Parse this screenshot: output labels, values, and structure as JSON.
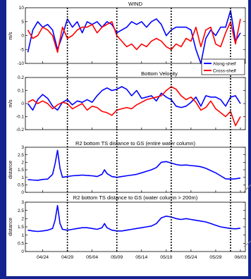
{
  "theme": {
    "background": "#14238f",
    "figure_background": "#ffffff",
    "series_blue": "#0000ff",
    "series_red": "#ff0000",
    "event_line": "#000000"
  },
  "x_axis": {
    "ticks": [
      "04/24",
      "04/29",
      "05/04",
      "05/09",
      "05/14",
      "05/19",
      "05/24",
      "05/29",
      "06/03"
    ],
    "event_lines_at": [
      "04/29",
      "05/09",
      "05/20",
      "06/01"
    ]
  },
  "chart_data": [
    {
      "type": "line",
      "title": "WIND",
      "ylabel": "m/s",
      "ylim": [
        -10,
        10
      ],
      "yticks": [
        "10",
        "5",
        "0",
        "-5",
        "-10"
      ],
      "legend": {
        "placement": "bottom-right",
        "entries": [
          "Along-shelf",
          "Cross-shelf"
        ]
      },
      "x": [
        21,
        22,
        23,
        24,
        25,
        26,
        27,
        28,
        29,
        30,
        31,
        32,
        33,
        34,
        35,
        36,
        37,
        38,
        39,
        40,
        41,
        42,
        43,
        44,
        45,
        46,
        47,
        48,
        49,
        50,
        51,
        52,
        53,
        54,
        55,
        56,
        57,
        58,
        59,
        60,
        61,
        62,
        63,
        64
      ],
      "series": [
        {
          "name": "Along-shelf",
          "values": [
            -6,
            2,
            5,
            3,
            4,
            2,
            -5,
            0,
            6,
            3,
            5,
            1,
            5,
            4,
            5,
            3,
            5,
            4,
            1,
            2,
            3,
            5,
            4,
            5,
            3,
            5,
            6,
            4,
            0,
            2,
            3,
            3,
            3,
            2,
            -5,
            -10,
            -1,
            2,
            0,
            3,
            3,
            9,
            -2,
            1
          ]
        },
        {
          "name": "Cross-shelf",
          "values": [
            2,
            -1,
            0,
            3,
            2,
            0,
            -6,
            3,
            -1,
            0,
            2,
            3,
            3,
            4,
            1,
            3,
            4,
            5,
            0,
            -2,
            -4,
            -3,
            -5,
            -3,
            -4,
            -2,
            -1,
            -2,
            -4,
            -5,
            -3,
            -4,
            -1,
            -2,
            3,
            -4,
            2,
            3,
            -3,
            -4,
            1,
            5,
            -3,
            6
          ]
        }
      ]
    },
    {
      "type": "line",
      "title": "Bottom Velocity",
      "ylabel": "m/s",
      "ylim": [
        -0.2,
        0.2
      ],
      "yticks": [
        "0.2",
        "0.1",
        "0",
        "-0.1",
        "-0.2"
      ],
      "x": [
        21,
        22,
        23,
        24,
        25,
        26,
        27,
        28,
        29,
        30,
        31,
        32,
        33,
        34,
        35,
        36,
        37,
        38,
        39,
        40,
        41,
        42,
        43,
        44,
        45,
        46,
        47,
        48,
        49,
        50,
        51,
        52,
        53,
        54,
        55,
        56,
        57,
        58,
        59,
        60,
        61,
        62,
        63,
        64
      ],
      "series": [
        {
          "name": "Along-shelf",
          "values": [
            0.0,
            -0.05,
            0.03,
            0.07,
            0.04,
            -0.02,
            -0.05,
            0.01,
            0.03,
            -0.01,
            0.02,
            0.01,
            0.03,
            0.01,
            0.06,
            0.1,
            0.12,
            0.1,
            0.11,
            0.13,
            0.11,
            0.06,
            0.1,
            0.04,
            0.05,
            0.06,
            0.02,
            0.08,
            0.05,
            0.03,
            -0.02,
            -0.03,
            -0.02,
            0.01,
            0.05,
            -0.02,
            0.06,
            0.05,
            0.05,
            0.03,
            -0.02,
            0.05,
            0.06,
            0.0
          ]
        },
        {
          "name": "Cross-shelf",
          "values": [
            0.01,
            0.03,
            0.0,
            0.02,
            0.0,
            -0.04,
            -0.01,
            0.01,
            0.0,
            -0.04,
            -0.02,
            0.0,
            -0.05,
            -0.02,
            -0.03,
            -0.06,
            -0.07,
            -0.09,
            -0.05,
            -0.04,
            -0.03,
            -0.04,
            -0.01,
            0.01,
            0.03,
            0.04,
            0.05,
            0.06,
            0.1,
            0.13,
            0.11,
            0.06,
            0.03,
            0.05,
            0.01,
            -0.05,
            -0.03,
            0.02,
            -0.04,
            -0.07,
            -0.1,
            -0.06,
            -0.17,
            -0.1
          ]
        }
      ]
    },
    {
      "type": "line",
      "title": "R2 bottom TS distance to GS (entire water column)",
      "ylabel": "distance",
      "ylim": [
        0,
        3
      ],
      "yticks": [
        "3",
        "2.5",
        "2",
        "1.5",
        "1",
        "0.5",
        "0"
      ],
      "x": [
        21,
        22,
        23,
        24,
        25,
        26,
        26.5,
        27,
        27.5,
        28,
        29,
        30,
        31,
        32,
        33,
        34,
        35,
        36,
        36.5,
        37,
        38,
        39,
        40,
        41,
        42,
        43,
        44,
        45,
        46,
        47,
        48,
        49,
        50,
        51,
        52,
        53,
        54,
        55,
        56,
        57,
        58,
        59,
        60,
        61,
        62,
        63,
        64
      ],
      "series": [
        {
          "name": "",
          "values": [
            0.85,
            0.82,
            0.8,
            0.86,
            0.88,
            1.2,
            1.9,
            2.8,
            1.6,
            1.0,
            1.05,
            1.1,
            1.12,
            1.15,
            1.12,
            1.1,
            1.05,
            1.2,
            1.5,
            1.25,
            1.05,
            1.0,
            1.05,
            1.1,
            1.15,
            1.2,
            1.3,
            1.4,
            1.5,
            1.65,
            2.0,
            2.05,
            1.95,
            1.85,
            1.8,
            1.82,
            1.78,
            1.75,
            1.7,
            1.6,
            1.45,
            1.3,
            1.1,
            0.9,
            0.88,
            0.9,
            0.95
          ]
        }
      ]
    },
    {
      "type": "line",
      "title": "R2 bottom TS distance to GS (water column > 200m)",
      "ylabel": "distance",
      "ylim": [
        0,
        3
      ],
      "yticks": [
        "3",
        "2.5",
        "2",
        "1.5",
        "1",
        "0.5",
        "0"
      ],
      "x": [
        21,
        22,
        23,
        24,
        25,
        26,
        26.5,
        27,
        27.5,
        28,
        29,
        30,
        31,
        32,
        33,
        34,
        35,
        36,
        36.5,
        37,
        38,
        39,
        40,
        41,
        42,
        43,
        44,
        45,
        46,
        47,
        48,
        49,
        50,
        51,
        52,
        53,
        54,
        55,
        56,
        57,
        58,
        59,
        60,
        61,
        62,
        63,
        64
      ],
      "series": [
        {
          "name": "",
          "values": [
            1.3,
            1.25,
            1.22,
            1.25,
            1.3,
            1.4,
            1.9,
            2.8,
            1.7,
            1.35,
            1.3,
            1.35,
            1.4,
            1.45,
            1.45,
            1.4,
            1.35,
            1.45,
            1.7,
            1.45,
            1.3,
            1.25,
            1.25,
            1.3,
            1.35,
            1.4,
            1.45,
            1.5,
            1.55,
            1.7,
            2.05,
            2.15,
            2.1,
            2.0,
            1.95,
            2.0,
            1.95,
            1.9,
            1.85,
            1.8,
            1.7,
            1.6,
            1.5,
            1.45,
            1.4,
            1.38,
            1.42
          ]
        }
      ]
    }
  ]
}
